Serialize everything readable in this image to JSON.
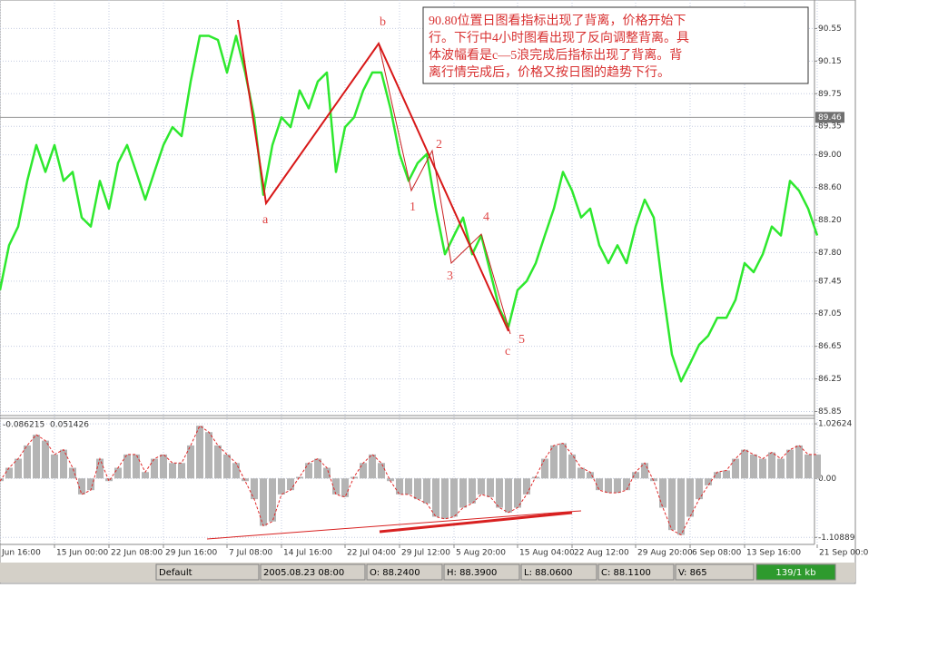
{
  "chart_data": [
    {
      "type": "line",
      "color": "#2ee82e",
      "values": [
        87.34,
        87.89,
        88.12,
        88.68,
        89.12,
        88.79,
        89.12,
        88.68,
        88.79,
        88.23,
        88.12,
        88.68,
        88.34,
        88.9,
        89.12,
        88.79,
        88.45,
        88.79,
        89.12,
        89.34,
        89.23,
        89.9,
        90.46,
        90.46,
        90.41,
        90.01,
        90.46,
        90.01,
        89.46,
        88.51,
        89.12,
        89.46,
        89.34,
        89.79,
        89.57,
        89.9,
        90.01,
        88.79,
        89.34,
        89.46,
        89.79,
        90.01,
        90.01,
        89.57,
        89.01,
        88.68,
        88.9,
        89.01,
        88.34,
        87.78,
        88.01,
        88.23,
        87.78,
        88.01,
        87.56,
        87.11,
        86.89,
        87.34,
        87.45,
        87.67,
        88.01,
        88.34,
        88.79,
        88.56,
        88.23,
        88.34,
        87.89,
        87.67,
        87.89,
        87.67,
        88.12,
        88.45,
        88.23,
        87.34,
        86.55,
        86.22,
        86.44,
        86.67,
        86.78,
        87.0,
        87.0,
        87.22,
        87.67,
        87.56,
        87.78,
        88.12,
        88.01,
        88.68,
        88.56,
        88.34,
        88.01
      ],
      "ylim": [
        85.8,
        90.9
      ],
      "yticks": [
        90.55,
        90.15,
        89.75,
        89.35,
        {
          "value": 89.0,
          "label": "89.00"
        },
        {
          "value": 88.6,
          "label": "88.60"
        },
        {
          "value": 88.2,
          "label": "88.20"
        },
        {
          "value": 87.8,
          "label": "87.80"
        },
        87.45,
        87.05,
        86.65,
        86.25,
        85.85
      ],
      "grid": true,
      "level": 89.46,
      "annotations": [
        "a",
        "b",
        "1",
        "2",
        "3",
        "4",
        "5",
        "c"
      ],
      "note": [
        "90.80位置日图看指标出现了背离，价格开始下",
        "行。下行中4小时图看出现了反向调整背离。具",
        "体波幅看是c—5浪完成后指标出现了背离。背",
        "离行情完成后，价格又按日图的趋势下行。"
      ]
    },
    {
      "type": "bar",
      "color": "#b4b4b4",
      "line_color": "#e02828",
      "header": [
        "-0.086215",
        "0.051426"
      ],
      "values": [
        -0.05,
        0.2,
        0.37,
        0.62,
        0.82,
        0.71,
        0.45,
        0.54,
        0.2,
        -0.3,
        -0.22,
        0.37,
        -0.05,
        0.2,
        0.45,
        0.45,
        0.12,
        0.37,
        0.45,
        0.29,
        0.29,
        0.62,
        0.99,
        0.87,
        0.62,
        0.45,
        0.29,
        -0.05,
        -0.39,
        -0.89,
        -0.81,
        -0.3,
        -0.22,
        0.03,
        0.29,
        0.37,
        0.2,
        -0.3,
        -0.35,
        0.03,
        0.29,
        0.45,
        0.29,
        -0.05,
        -0.3,
        -0.3,
        -0.39,
        -0.47,
        -0.72,
        -0.76,
        -0.72,
        -0.55,
        -0.47,
        -0.3,
        -0.35,
        -0.55,
        -0.64,
        -0.55,
        -0.3,
        0.03,
        0.37,
        0.62,
        0.66,
        0.45,
        0.2,
        0.12,
        -0.22,
        -0.27,
        -0.27,
        -0.22,
        0.12,
        0.29,
        -0.05,
        -0.55,
        -0.97,
        -1.06,
        -0.72,
        -0.39,
        -0.13,
        0.12,
        0.15,
        0.37,
        0.54,
        0.45,
        0.37,
        0.49,
        0.37,
        0.54,
        0.62,
        0.45,
        0.45
      ],
      "categories": [
        "Jun 16:00",
        null,
        null,
        null,
        null,
        null,
        "15 Jun 00:00",
        null,
        null,
        null,
        null,
        null,
        "22 Jun 08:00",
        null,
        null,
        null,
        null,
        null,
        "29 Jun 16:00",
        null,
        null,
        null,
        null,
        null,
        null,
        "7 Jul 08:00",
        null,
        null,
        null,
        null,
        null,
        "14 Jul 16:00",
        null,
        null,
        null,
        null,
        null,
        null,
        "22 Jul 04:00",
        null,
        null,
        null,
        null,
        null,
        "29 Jul 12:00",
        null,
        null,
        null,
        null,
        null,
        "5 Aug 20:00",
        null,
        null,
        null,
        null,
        null,
        null,
        "15 Aug 04:00",
        null,
        null,
        null,
        null,
        null,
        "22 Aug 12:00",
        null,
        null,
        null,
        null,
        null,
        null,
        "29 Aug 20:00",
        null,
        null,
        null,
        null,
        null,
        "6 Sep 08:00",
        null,
        null,
        null,
        null,
        null,
        "13 Sep 16:00",
        null,
        null,
        null,
        null,
        null,
        null,
        null,
        "21 Sep 00:0"
      ],
      "ylim": [
        -1.24,
        1.13
      ],
      "yticks": [
        1.02624,
        {
          "value": 0,
          "label": "0.00"
        },
        -1.10889
      ],
      "grid": true
    }
  ],
  "status_bar": [
    "Default",
    "2005.08.23 08:00",
    "O: 88.2400",
    "H: 88.3900",
    "L: 88.0600",
    "C: 88.1100",
    "V: 865",
    "139/1 kb"
  ]
}
